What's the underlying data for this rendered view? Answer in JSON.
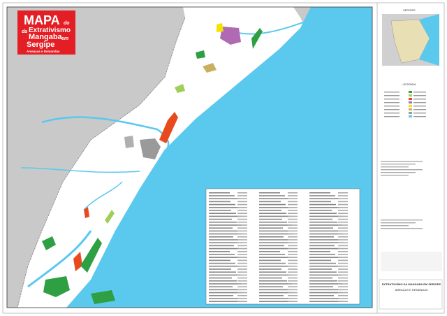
{
  "title": {
    "main": "MAPA",
    "do": "do",
    "line2": "Extrativismo",
    "da": "da",
    "line3": "Mangaba",
    "em": "em",
    "line4": "Sergipe",
    "subtitle": "Ameaças e Demandas"
  },
  "panel": {
    "inset_title": "SERGIPE",
    "legend_title": "LEGENDA",
    "footer_title": "EXTRATIVISMO DA MANGABA EM SERGIPE",
    "footer_subtitle": "AMEAÇAS E DEMANDAS"
  }
}
